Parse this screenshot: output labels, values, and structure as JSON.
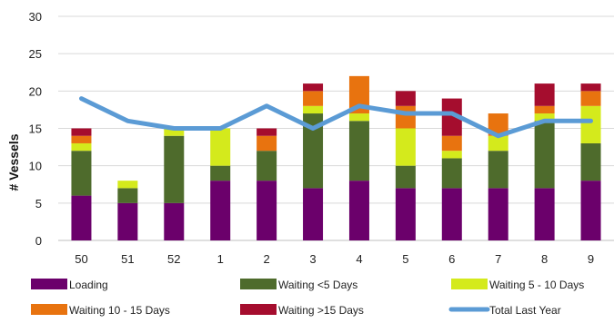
{
  "chart_data": {
    "type": "bar",
    "stacked": true,
    "title": "",
    "xlabel": "",
    "ylabel": "# Vessels",
    "ylim": [
      0,
      30
    ],
    "yticks": [
      0,
      5,
      10,
      15,
      20,
      25,
      30
    ],
    "grid": true,
    "legend_position": "bottom",
    "categories": [
      "50",
      "51",
      "52",
      "1",
      "2",
      "3",
      "4",
      "5",
      "6",
      "7",
      "8",
      "9"
    ],
    "series": [
      {
        "name": "Loading",
        "kind": "bar",
        "color": "#6b006b",
        "values": [
          6,
          5,
          5,
          8,
          8,
          7,
          8,
          7,
          7,
          7,
          7,
          8
        ]
      },
      {
        "name": "Waiting <5 Days",
        "kind": "bar",
        "color": "#4e6b2c",
        "values": [
          6,
          2,
          9,
          2,
          4,
          10,
          8,
          3,
          4,
          5,
          9,
          5
        ]
      },
      {
        "name": "Waiting 5 - 10 Days",
        "kind": "bar",
        "color": "#d4ea1c",
        "values": [
          1,
          1,
          1,
          5,
          0,
          1,
          1,
          5,
          1,
          2,
          1,
          5
        ]
      },
      {
        "name": "Waiting 10 - 15 Days",
        "kind": "bar",
        "color": "#e8730f",
        "values": [
          1,
          0,
          0,
          0,
          2,
          2,
          5,
          3,
          2,
          3,
          1,
          2
        ]
      },
      {
        "name": "Waiting >15 Days",
        "kind": "bar",
        "color": "#a50d2e",
        "values": [
          1,
          0,
          0,
          0,
          1,
          1,
          0,
          2,
          5,
          0,
          3,
          1
        ]
      },
      {
        "name": "Total Last Year",
        "kind": "line",
        "color": "#5b9bd5",
        "values": [
          19,
          16,
          15,
          15,
          18,
          15,
          18,
          17,
          17,
          14,
          16,
          16
        ]
      }
    ]
  }
}
